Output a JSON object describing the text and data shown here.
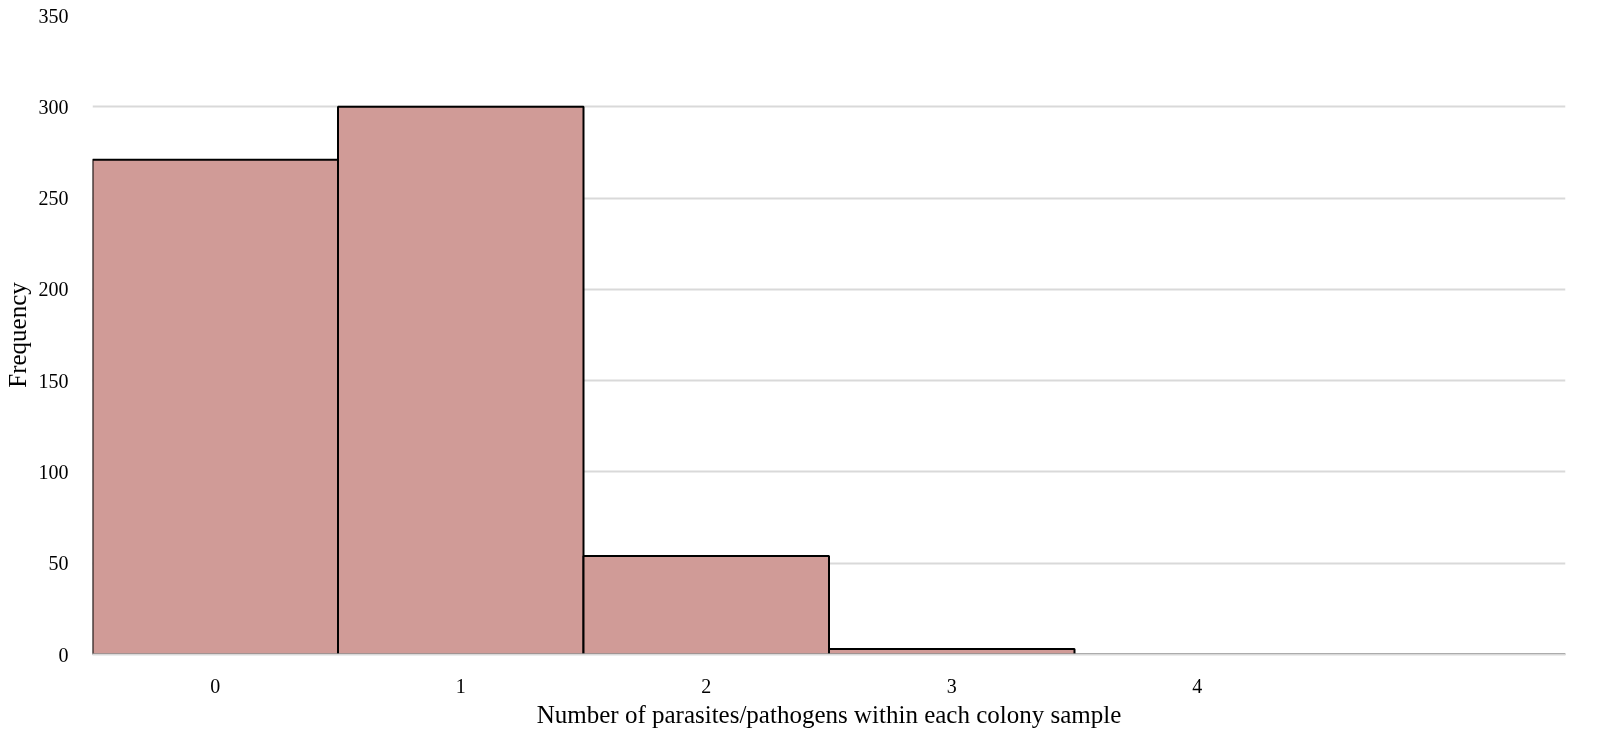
{
  "chart_data": {
    "type": "bar",
    "xlabel": "Number of parasites/pathogens within each colony sample",
    "ylabel": "Frequency",
    "categories": [
      "0",
      "1",
      "2",
      "3",
      "4",
      null
    ],
    "values": [
      271,
      300,
      54,
      3,
      0,
      0
    ],
    "color": "#d09b97",
    "ylim": [
      0,
      350
    ],
    "yticks": [
      0,
      50,
      100,
      150,
      200,
      250,
      300,
      350
    ],
    "grid": "y"
  }
}
